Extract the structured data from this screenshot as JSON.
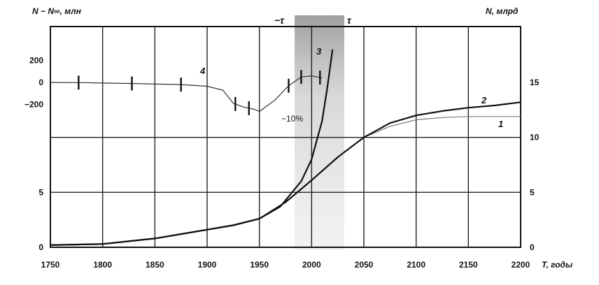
{
  "chart_data": {
    "type": "line",
    "left_axis_title": "N − N∞, млн",
    "right_axis_title": "N, млрд",
    "x_axis_title": "T, годы",
    "x_ticks": [
      "1750",
      "1800",
      "1850",
      "1900",
      "1950",
      "2000",
      "2050",
      "2100",
      "2150",
      "2200"
    ],
    "xlim": [
      1750,
      2200
    ],
    "right_ticks": [
      "0",
      "5",
      "10",
      "15"
    ],
    "left_lower_ticks": [
      "0",
      "5"
    ],
    "left_upper_ticks": [
      "200",
      "0",
      "−200"
    ],
    "ylim_right": [
      0,
      15
    ],
    "ylim_inset": [
      -300,
      300
    ],
    "grid": true,
    "annotations": {
      "minus_tau": "−τ",
      "tau": "τ",
      "percent": "−10%"
    },
    "series": [
      {
        "label": "1",
        "axis": "right",
        "x": [
          1750,
          1800,
          1850,
          1900,
          1925,
          1950,
          1975,
          2000,
          2025,
          2050,
          2075,
          2100,
          2125,
          2150,
          2175,
          2200
        ],
        "values": [
          0.2,
          0.3,
          0.8,
          1.6,
          2.0,
          2.6,
          4.1,
          6.1,
          8.2,
          10.0,
          11.0,
          11.6,
          11.8,
          11.9,
          11.9,
          11.9
        ]
      },
      {
        "label": "2",
        "axis": "right",
        "x": [
          1750,
          1800,
          1850,
          1900,
          1925,
          1950,
          1975,
          2000,
          2025,
          2050,
          2075,
          2100,
          2125,
          2150,
          2175,
          2200
        ],
        "values": [
          0.2,
          0.3,
          0.8,
          1.6,
          2.0,
          2.6,
          4.1,
          6.1,
          8.2,
          10.0,
          11.3,
          12.0,
          12.4,
          12.7,
          12.9,
          13.2
        ]
      },
      {
        "label": "3",
        "axis": "right",
        "x": [
          1750,
          1800,
          1850,
          1900,
          1925,
          1950,
          1970,
          1990,
          2000,
          2010,
          2015,
          2020
        ],
        "values": [
          0.2,
          0.3,
          0.8,
          1.6,
          2.0,
          2.6,
          3.7,
          6.0,
          8.0,
          11.5,
          14.5,
          18.0
        ]
      },
      {
        "label": "4",
        "axis": "inset",
        "x": [
          1750,
          1780,
          1830,
          1875,
          1900,
          1915,
          1925,
          1935,
          1945,
          1950,
          1965,
          1978,
          1990,
          2000,
          2010
        ],
        "values": [
          0,
          -2,
          -10,
          -20,
          -35,
          -70,
          -190,
          -225,
          -245,
          -265,
          -160,
          -30,
          50,
          60,
          40
        ]
      }
    ]
  }
}
